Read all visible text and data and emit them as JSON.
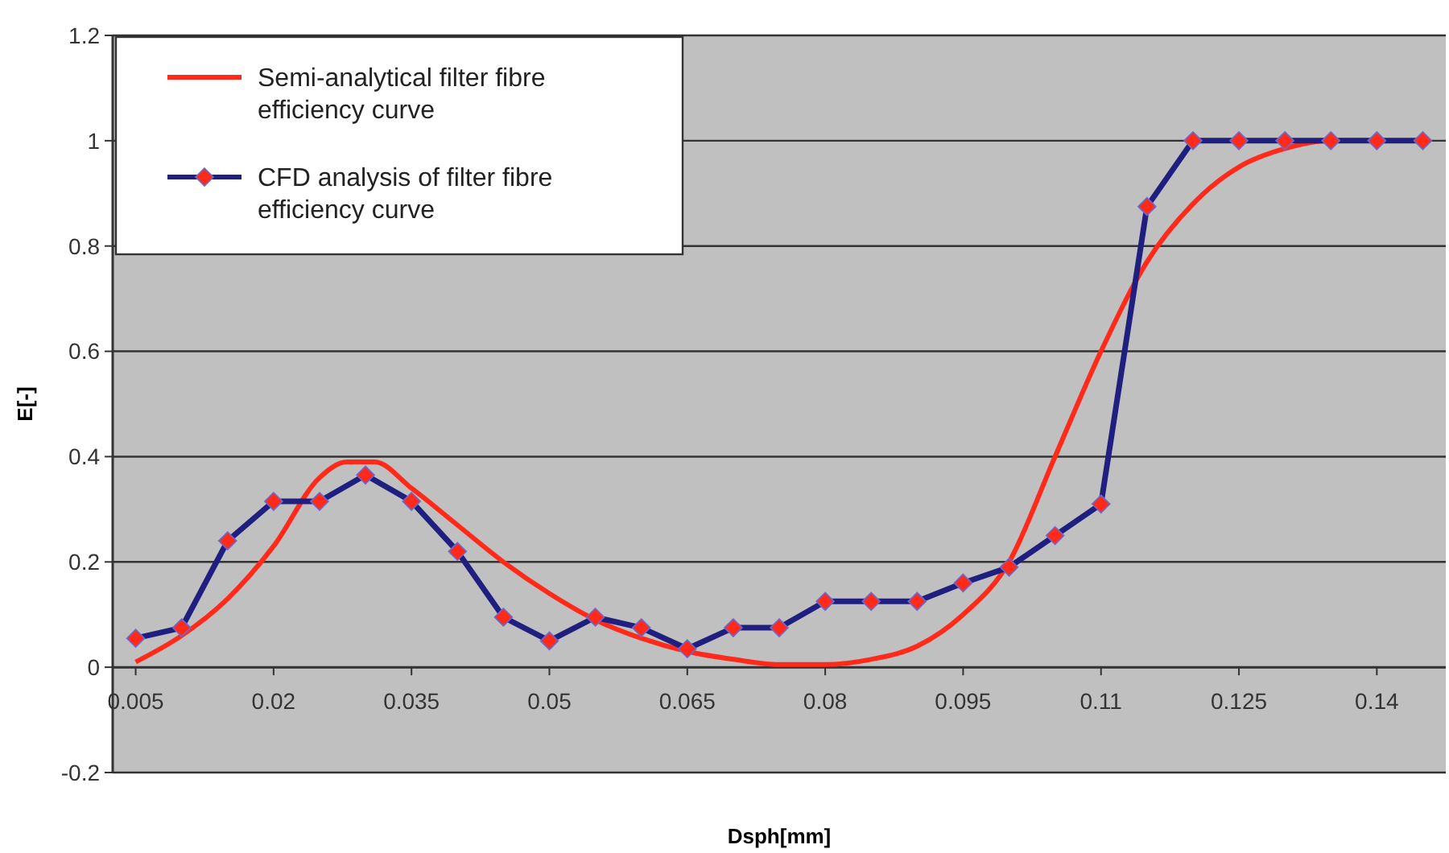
{
  "chart_data": {
    "type": "line",
    "xlabel": "Dsph[mm]",
    "ylabel": "E[-]",
    "xlim": [
      0.0025,
      0.1475
    ],
    "xticks": [
      0.005,
      0.02,
      0.035,
      0.05,
      0.065,
      0.08,
      0.095,
      0.11,
      0.125,
      0.14
    ],
    "ylim": [
      -0.2,
      1.2
    ],
    "yticks": [
      -0.2,
      0,
      0.2,
      0.4,
      0.6,
      0.8,
      1,
      1.2
    ],
    "grid": "y",
    "legend": "top left",
    "series": [
      {
        "name": "Semi-analytical filter fibre efficiency curve",
        "color": "#ff2a1a",
        "marker": "none",
        "x": [
          0.005,
          0.01,
          0.015,
          0.02,
          0.025,
          0.028,
          0.031,
          0.035,
          0.04,
          0.045,
          0.05,
          0.055,
          0.06,
          0.065,
          0.07,
          0.075,
          0.08,
          0.085,
          0.09,
          0.095,
          0.1,
          0.105,
          0.11,
          0.115,
          0.12,
          0.125,
          0.13,
          0.135,
          0.14
        ],
        "values": [
          0.01,
          0.06,
          0.13,
          0.23,
          0.36,
          0.39,
          0.39,
          0.34,
          0.27,
          0.2,
          0.14,
          0.09,
          0.055,
          0.03,
          0.015,
          0.005,
          0.005,
          0.015,
          0.04,
          0.1,
          0.2,
          0.4,
          0.6,
          0.77,
          0.88,
          0.95,
          0.985,
          1,
          1
        ]
      },
      {
        "name": "CFD analysis of filter fibre efficiency curve",
        "color": "#1f1f80",
        "marker": "diamond",
        "x": [
          0.005,
          0.01,
          0.015,
          0.02,
          0.025,
          0.03,
          0.035,
          0.04,
          0.045,
          0.05,
          0.055,
          0.06,
          0.065,
          0.07,
          0.075,
          0.08,
          0.085,
          0.09,
          0.095,
          0.1,
          0.105,
          0.11,
          0.115,
          0.12,
          0.125,
          0.13,
          0.135,
          0.14,
          0.145
        ],
        "values": [
          0.055,
          0.075,
          0.24,
          0.315,
          0.315,
          0.365,
          0.315,
          0.22,
          0.095,
          0.05,
          0.095,
          0.075,
          0.035,
          0.075,
          0.075,
          0.125,
          0.125,
          0.125,
          0.16,
          0.19,
          0.25,
          0.31,
          0.875,
          1,
          1,
          1,
          1,
          1,
          1
        ]
      }
    ]
  }
}
